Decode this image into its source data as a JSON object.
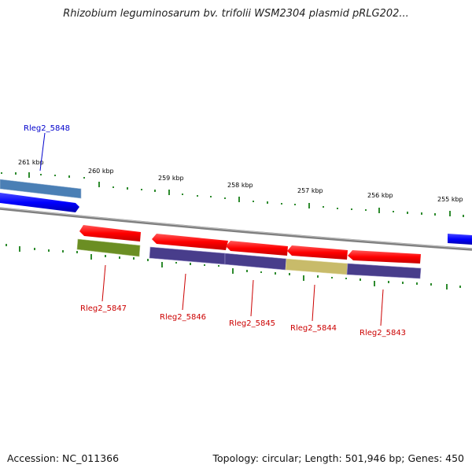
{
  "title": "Rhizobium leguminosarum bv. trifolii WSM2304 plasmid pRLG202...",
  "accession": "Accession: NC_011366",
  "summary": "Topology: circular; Length: 501,946 bp; Genes: 450",
  "ticks": [
    "261 kbp",
    "260 kbp",
    "259 kbp",
    "258 kbp",
    "257 kbp",
    "256 kbp",
    "255 kbp"
  ],
  "genes": [
    {
      "label": "Rleg2_5848",
      "color": "#0000cc"
    },
    {
      "label": "Rleg2_5847",
      "color": "#cc0000"
    },
    {
      "label": "Rleg2_5846",
      "color": "#cc0000"
    },
    {
      "label": "Rleg2_5845",
      "color": "#cc0000"
    },
    {
      "label": "Rleg2_5844",
      "color": "#cc0000"
    },
    {
      "label": "Rleg2_5843",
      "color": "#cc0000"
    }
  ],
  "colors": {
    "forward_gene": "#0000ff",
    "reverse_gene": "#ff0000",
    "backbone": "#808080",
    "tick": "#2e8b2e",
    "category_blue": "#4a7fb5",
    "category_green": "#6b8e23",
    "category_purple": "#483d8b",
    "category_khaki": "#c8bb6a"
  }
}
